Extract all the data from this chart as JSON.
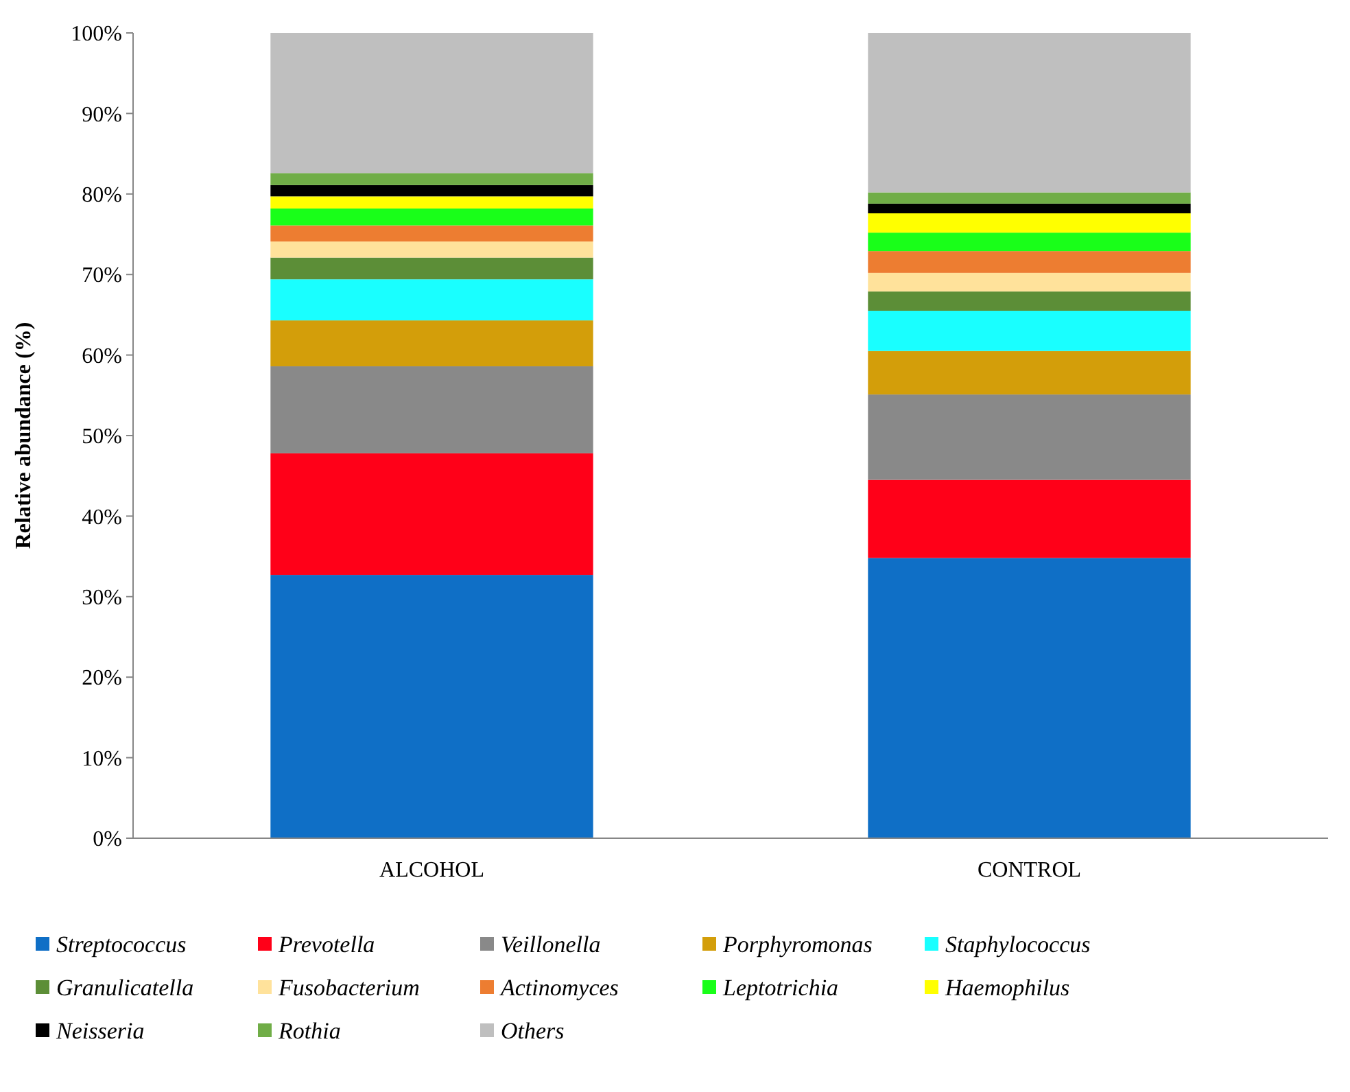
{
  "chart_data": {
    "type": "bar",
    "stacked": true,
    "ylabel": "Relative abundance (%)",
    "categories": [
      "ALCOHOL",
      "CONTROL"
    ],
    "ylim": [
      0,
      100
    ],
    "yticks": [
      {
        "value": 0,
        "label": "0%"
      },
      {
        "value": 10,
        "label": "10%"
      },
      {
        "value": 20,
        "label": "20%"
      },
      {
        "value": 30,
        "label": "30%"
      },
      {
        "value": 40,
        "label": "40%"
      },
      {
        "value": 50,
        "label": "50%"
      },
      {
        "value": 60,
        "label": "60%"
      },
      {
        "value": 70,
        "label": "70%"
      },
      {
        "value": 80,
        "label": "80%"
      },
      {
        "value": 90,
        "label": "90%"
      },
      {
        "value": 100,
        "label": "100%"
      }
    ],
    "grid": false,
    "legend": "bottom",
    "series": [
      {
        "name": "Streptococcus",
        "color": "#0f6fc6",
        "values": [
          32.7,
          34.8
        ]
      },
      {
        "name": "Prevotella",
        "color": "#ff0018",
        "values": [
          15.1,
          9.7
        ]
      },
      {
        "name": "Veillonella",
        "color": "#898989",
        "values": [
          10.8,
          10.6
        ]
      },
      {
        "name": "Porphyromonas",
        "color": "#d39e0a",
        "values": [
          5.7,
          5.4
        ]
      },
      {
        "name": "Staphylococcus",
        "color": "#19ffff",
        "values": [
          5.1,
          5.0
        ]
      },
      {
        "name": "Granulicatella",
        "color": "#5c8e37",
        "values": [
          2.7,
          2.4
        ]
      },
      {
        "name": "Fusobacterium",
        "color": "#ffe29b",
        "values": [
          2.0,
          2.3
        ]
      },
      {
        "name": "Actinomyces",
        "color": "#ed7d31",
        "values": [
          2.0,
          2.7
        ]
      },
      {
        "name": "Leptotrichia",
        "color": "#19ff19",
        "values": [
          2.1,
          2.3
        ]
      },
      {
        "name": "Haemophilus",
        "color": "#ffff00",
        "values": [
          1.5,
          2.4
        ]
      },
      {
        "name": "Neisseria",
        "color": "#000000",
        "values": [
          1.4,
          1.2
        ]
      },
      {
        "name": "Rothia",
        "color": "#70ad47",
        "values": [
          1.5,
          1.4
        ]
      },
      {
        "name": "Others",
        "color": "#bfbfbf",
        "values": [
          17.4,
          19.8
        ]
      }
    ]
  }
}
